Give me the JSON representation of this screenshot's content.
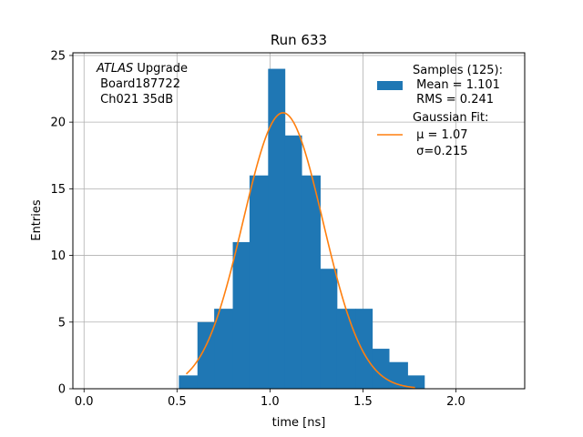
{
  "chart_data": {
    "type": "bar",
    "title": "Run 633",
    "xlabel": "time [ns]",
    "ylabel": "Entries",
    "xlim": [
      -0.06,
      2.37
    ],
    "ylim": [
      0,
      25.2
    ],
    "grid": true,
    "xticks": [
      {
        "value": 0.0,
        "label": "0.0"
      },
      {
        "value": 0.5,
        "label": "0.5"
      },
      {
        "value": 1.0,
        "label": "1.0"
      },
      {
        "value": 1.5,
        "label": "1.5"
      },
      {
        "value": 2.0,
        "label": "2.0"
      }
    ],
    "yticks": [
      {
        "value": 0,
        "label": "0"
      },
      {
        "value": 5,
        "label": "5"
      },
      {
        "value": 10,
        "label": "10"
      },
      {
        "value": 15,
        "label": "15"
      },
      {
        "value": 20,
        "label": "20"
      },
      {
        "value": 25,
        "label": "25"
      }
    ],
    "histogram": {
      "name": "Samples (125):",
      "color": "#1f77b4",
      "bin_edges": [
        0.51,
        0.61,
        0.7,
        0.8,
        0.89,
        0.99,
        1.08,
        1.17,
        1.27,
        1.36,
        1.46,
        1.55,
        1.64,
        1.74,
        1.83
      ],
      "counts": [
        1,
        5,
        6,
        11,
        16,
        24,
        19,
        16,
        9,
        6,
        6,
        3,
        2,
        1
      ]
    },
    "fit": {
      "name": "Gaussian Fit:",
      "color": "#ff7f0e",
      "mu": 1.07,
      "sigma": 0.215,
      "amplitude": 20.7,
      "x_range": [
        0.55,
        1.78
      ]
    },
    "legend": {
      "placement": "top-right",
      "hist_lines": [
        "Samples (125):",
        " Mean = 1.101",
        " RMS = 0.241"
      ],
      "fit_lines": [
        "Gaussian Fit:",
        " μ = 1.07",
        " σ=0.215"
      ]
    },
    "annotation": {
      "italic": "ATLAS",
      "rest": " Upgrade",
      "lines": [
        " Board187722",
        " Ch021 35dB"
      ]
    }
  }
}
